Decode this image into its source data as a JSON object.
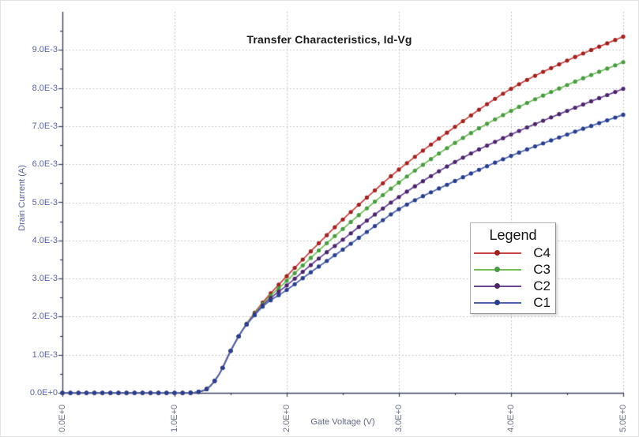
{
  "chart_data": {
    "type": "line",
    "title": "Transfer Characteristics, Id-Vg",
    "xlabel": "Gate Voltage (V)",
    "ylabel": "Drain Current (A)",
    "xlim": [
      0,
      5
    ],
    "ylim": [
      0,
      0.01
    ],
    "grid": "dotted",
    "legend_position": "right-middle",
    "legend_title": "Legend",
    "x_ticks": {
      "values": [
        0,
        1,
        2,
        3,
        4,
        5
      ],
      "labels": [
        "0.0E+0",
        "1.0E+0",
        "2.0E+0",
        "3.0E+0",
        "4.0E+0",
        "5.0E+0"
      ],
      "minor_step": 0.5
    },
    "y_ticks": {
      "values": [
        0,
        0.001,
        0.002,
        0.003,
        0.004,
        0.005,
        0.006,
        0.007,
        0.008,
        0.009
      ],
      "labels": [
        "0.0E+0",
        "1.0E-3",
        "2.0E-3",
        "3.0E-3",
        "4.0E-3",
        "5.0E-3",
        "6.0E-3",
        "7.0E-3",
        "8.0E-3",
        "9.0E-3"
      ],
      "minor_step": 0.0005
    },
    "marker_interval_x": 0.0714,
    "anchors_x": [
      0,
      0.5,
      1.0,
      1.1,
      1.2,
      1.3,
      1.4,
      1.5,
      1.6,
      1.7,
      1.8,
      2.0,
      2.25,
      2.5,
      2.75,
      3.0,
      3.5,
      4.0,
      4.5,
      5.0
    ],
    "series": [
      {
        "name": "C4",
        "line_color": "#c64643",
        "marker_color": "#9e2320",
        "values": [
          0,
          0,
          0,
          0,
          2e-05,
          0.00013,
          0.0005,
          0.0011,
          0.00162,
          0.00205,
          0.00242,
          0.00306,
          0.00382,
          0.00455,
          0.00522,
          0.00586,
          0.00698,
          0.00798,
          0.00872,
          0.00935
        ]
      },
      {
        "name": "C3",
        "line_color": "#76bd5d",
        "marker_color": "#4a9b44",
        "values": [
          0,
          0,
          0,
          0,
          2e-05,
          0.00013,
          0.0005,
          0.0011,
          0.00162,
          0.00203,
          0.00238,
          0.00294,
          0.00364,
          0.0043,
          0.00493,
          0.00552,
          0.00656,
          0.0074,
          0.00808,
          0.00868
        ]
      },
      {
        "name": "C2",
        "line_color": "#684595",
        "marker_color": "#4b2568",
        "values": [
          0,
          0,
          0,
          0,
          2e-05,
          0.00013,
          0.0005,
          0.0011,
          0.00162,
          0.00201,
          0.00234,
          0.00282,
          0.00344,
          0.00402,
          0.0046,
          0.00514,
          0.00606,
          0.00678,
          0.0074,
          0.00798
        ]
      },
      {
        "name": "C1",
        "line_color": "#5165ad",
        "marker_color": "#293e8c",
        "values": [
          0,
          0,
          0,
          0,
          2e-05,
          0.00013,
          0.0005,
          0.0011,
          0.00162,
          0.00199,
          0.0023,
          0.0027,
          0.00324,
          0.00376,
          0.0043,
          0.00482,
          0.00556,
          0.00622,
          0.00678,
          0.0073
        ]
      }
    ],
    "colors": {
      "axis": "#3d4460",
      "grid": "#b8b8b8",
      "title_text": "#1a1a1a",
      "y_tick_text": "#5a64a8",
      "x_tick_text": "#6b7086"
    }
  }
}
